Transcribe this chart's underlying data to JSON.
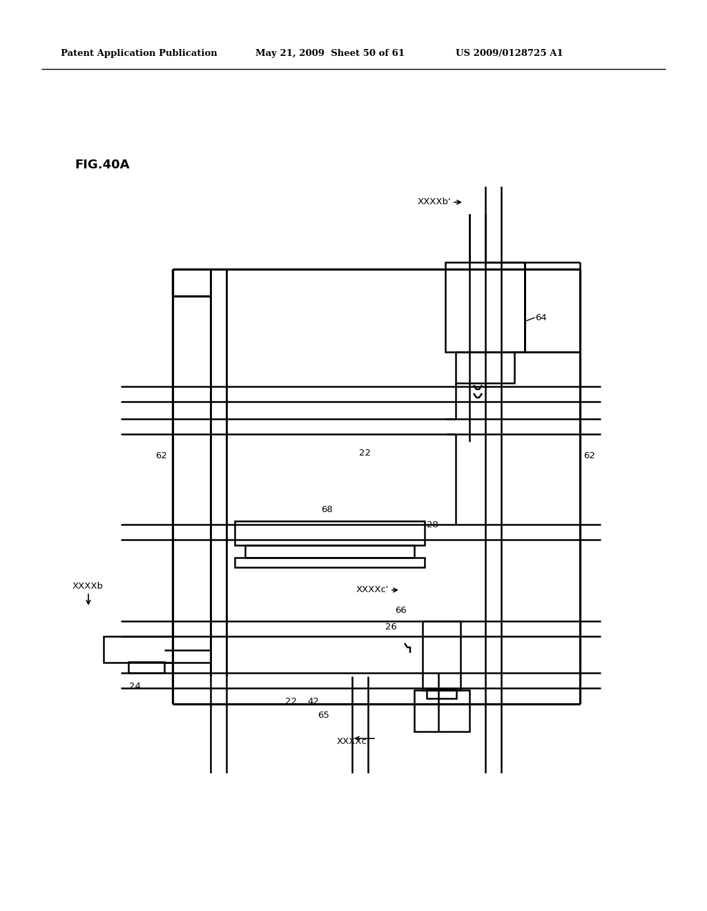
{
  "bg_color": "#ffffff",
  "header_text": "Patent Application Publication",
  "header_date": "May 21, 2009  Sheet 50 of 61",
  "header_patent": "US 2009/0128725 A1",
  "fig_label": "FIG.40A",
  "line_color": "#000000",
  "lw": 1.8
}
